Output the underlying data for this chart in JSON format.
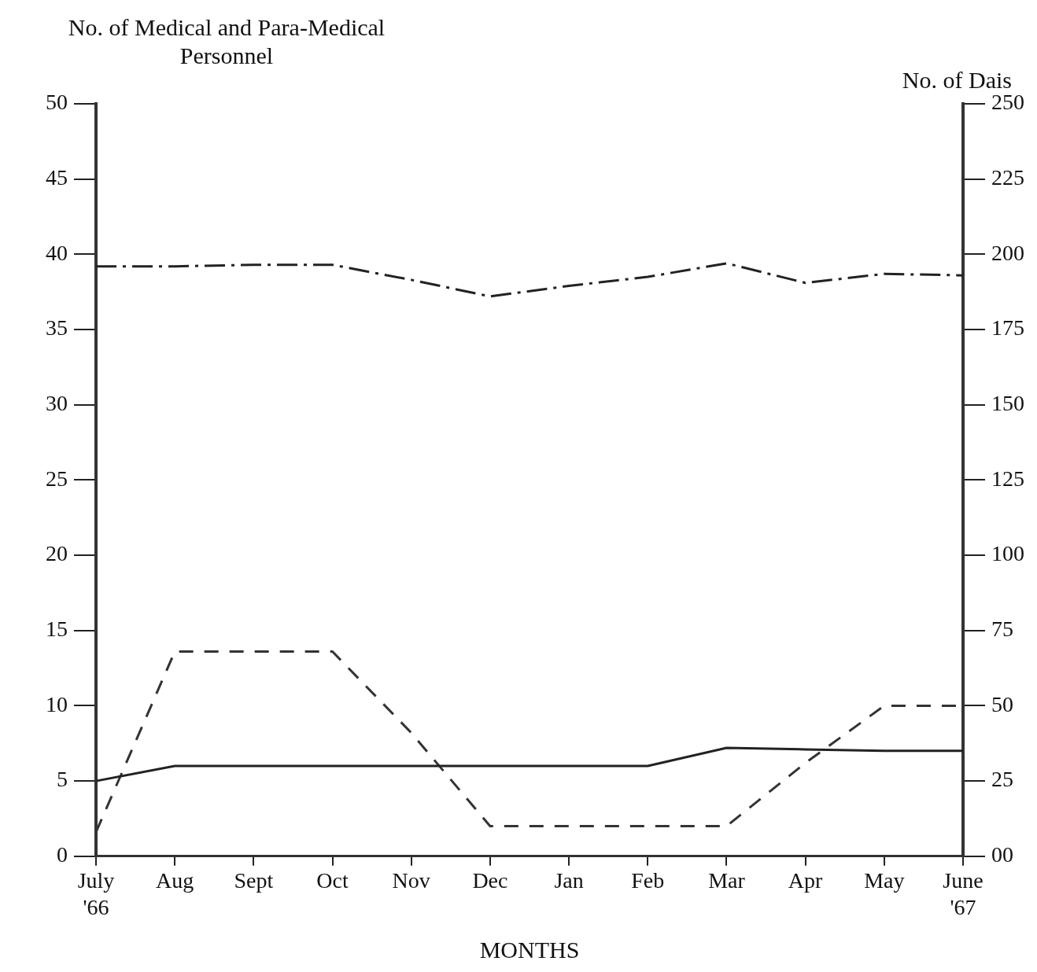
{
  "chart_data": {
    "type": "line",
    "xlabel": "MONTHS",
    "ylabel": "No. of Medical and Para-Medical\nPersonnel",
    "y2label": "No. of Dais",
    "categories": [
      "July\n'66",
      "Aug",
      "Sept",
      "Oct",
      "Nov",
      "Dec",
      "Jan",
      "Feb",
      "Mar",
      "Apr",
      "May",
      "June\n'67"
    ],
    "series": [
      {
        "color": "#222222",
        "line_style": "dashdot",
        "axis": "y",
        "values": [
          39.2,
          39.2,
          39.3,
          39.3,
          38.3,
          37.2,
          37.9,
          38.5,
          39.4,
          38.1,
          38.7,
          38.6
        ]
      },
      {
        "color": "#222222",
        "line_style": "solid",
        "axis": "y",
        "values": [
          5,
          6,
          6,
          6,
          6,
          6,
          6,
          6,
          7.2,
          7.1,
          7,
          7
        ]
      },
      {
        "color": "#333333",
        "line_style": "dashed",
        "axis": "y2",
        "values": [
          8,
          68,
          68,
          68,
          41,
          10,
          10,
          10,
          10,
          31,
          50,
          50
        ]
      }
    ],
    "ylim": [
      0,
      50
    ],
    "yticks": [
      0,
      5,
      10,
      15,
      20,
      25,
      30,
      35,
      40,
      45,
      50
    ],
    "y2lim": [
      0,
      250
    ],
    "y2ticks": [
      {
        "value": 0,
        "label": "00"
      },
      25,
      50,
      75,
      100,
      125,
      150,
      175,
      200,
      225,
      250
    ],
    "grid": false,
    "legend": false,
    "marker": "none"
  }
}
